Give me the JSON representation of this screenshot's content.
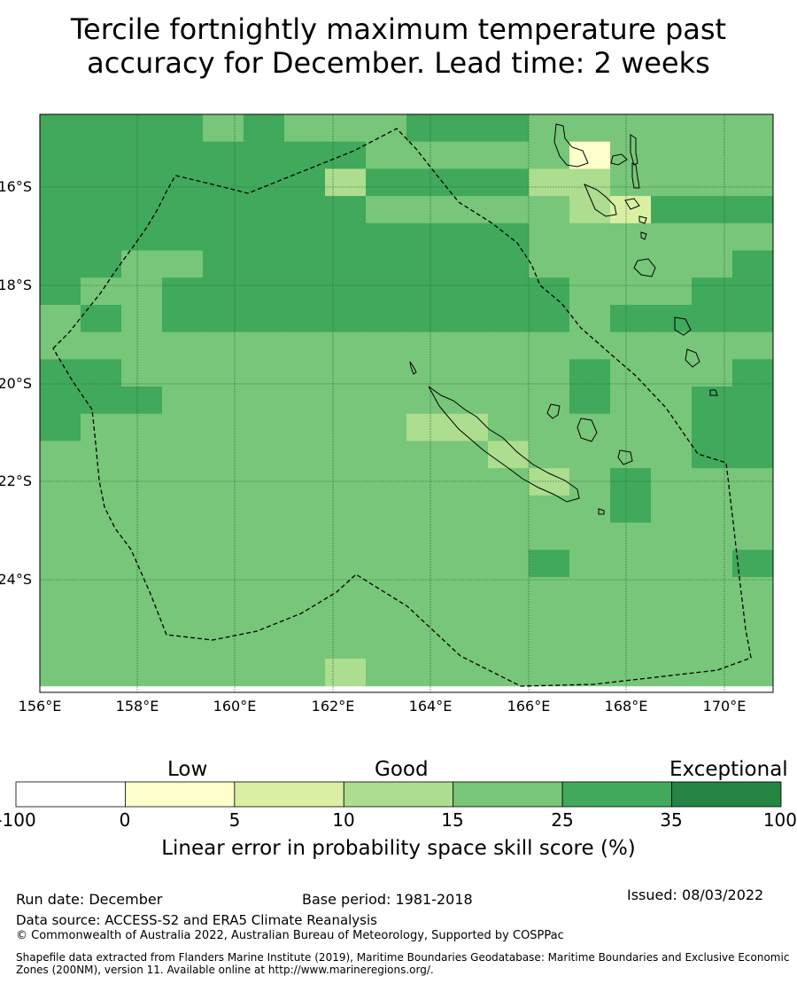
{
  "title": {
    "line1": "Tercile fortnightly maximum temperature past",
    "line2": "accuracy for December. Lead time: 2 weeks"
  },
  "map": {
    "lon_range": [
      156,
      171
    ],
    "lat_range": [
      -26.5,
      -14.7
    ],
    "lat_labels": [
      "16°S",
      "18°S",
      "20°S",
      "22°S",
      "24°S"
    ],
    "lon_labels": [
      "156°E",
      "158°E",
      "160°E",
      "162°E",
      "164°E",
      "166°E",
      "168°E",
      "170°E"
    ],
    "grid_cell_colors": {
      "a": "#40a95b",
      "b": "#78c679",
      "c": "#addd8e",
      "d": "#d9f0a3",
      "e": "#ffffcc"
    }
  },
  "colorbar": {
    "category_labels": {
      "low": "Low",
      "good": "Good",
      "exceptional": "Exceptional"
    },
    "ticks": [
      "-100",
      "0",
      "5",
      "10",
      "15",
      "25",
      "35",
      "100"
    ],
    "colors": [
      "#ffffff",
      "#ffffcc",
      "#d9f0a3",
      "#addd8e",
      "#78c679",
      "#40a95b",
      "#238443"
    ],
    "title": "Linear error in probability space skill score (%)"
  },
  "footer": {
    "run_date": "Run date: December",
    "base_period": "Base period: 1981-2018",
    "issued": "Issued: 08/03/2022",
    "data_source": "Data source: ACCESS-S2 and ERA5 Climate Reanalysis",
    "copyright": "© Commonwealth of Australia 2022, Australian Bureau of Meteorology, Supported by COSPPac",
    "shapefile": "Shapefile data extracted from Flanders Marine Institute (2019), Maritime Boundaries Geodatabase: Maritime Boundaries and Exclusive Economic Zones (200NM), version 11. Available online at http://www.marineregions.org/."
  }
}
